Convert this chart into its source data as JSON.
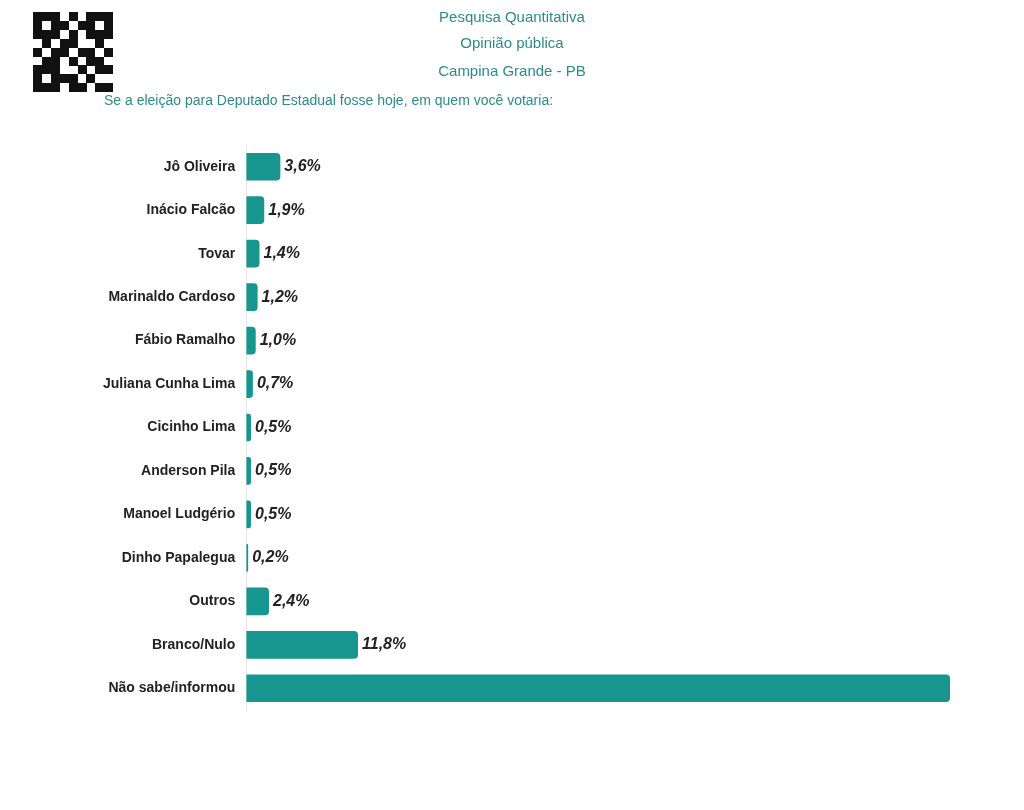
{
  "chart_data": {
    "type": "bar",
    "orientation": "horizontal",
    "title": "Pesquisa Quantitativa",
    "subtitle": "Opinião pública",
    "annotations": [
      "Campina Grande - PB",
      "Se a eleição para Deputado Estadual fosse hoje, em quem você votaria:"
    ],
    "categories": [
      "Jô Oliveira",
      "Inácio Falcão",
      "Tovar",
      "Marinaldo Cardoso",
      "Fábio Ramalho",
      "Juliana Cunha Lima",
      "Cicinho Lima",
      "Anderson Pila",
      "Manoel Ludgério",
      "Dinho Papalegua",
      "Outros",
      "Branco/Nulo",
      "Não sabe/informou"
    ],
    "values": [
      3.6,
      1.9,
      1.4,
      1.2,
      1.0,
      0.7,
      0.5,
      0.5,
      0.5,
      0.2,
      2.4,
      11.8,
      74.3
    ],
    "value_labels": [
      "3,6%",
      "1,9%",
      "1,4%",
      "1,2%",
      "1,0%",
      "0,7%",
      "0,5%",
      "0,5%",
      "0,5%",
      "0,2%",
      "2,4%",
      "11,8%",
      null
    ],
    "color": "#17958f"
  }
}
